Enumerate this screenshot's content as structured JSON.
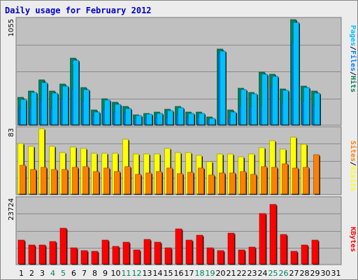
{
  "title": "Daily usage for February 2012",
  "colors": {
    "hits": "#00805c",
    "files": "#0080ff",
    "pages": "#00c0ff",
    "visits": "#ffff00",
    "sites": "#ff8000",
    "kbytes": "#ff0000",
    "weekday_label": "#000000",
    "weekend_label": "#00805c",
    "separator": "#000000"
  },
  "legend": {
    "top": [
      "Hits",
      "/",
      "Files",
      "/",
      "Pages"
    ],
    "middle": [
      "Visits",
      "/",
      "Sites"
    ],
    "bottom": [
      "KBytes"
    ]
  },
  "chart_data": [
    {
      "type": "bar",
      "name": "hits-files-pages",
      "ymax_label": "1055",
      "ylim": [
        0,
        1055
      ],
      "grid": true,
      "categories": [
        "1",
        "2",
        "3",
        "4",
        "5",
        "6",
        "7",
        "8",
        "9",
        "10",
        "11",
        "12",
        "13",
        "14",
        "15",
        "16",
        "17",
        "18",
        "19",
        "20",
        "21",
        "22",
        "23",
        "24",
        "25",
        "26",
        "27",
        "28",
        "29",
        "30",
        "31"
      ],
      "weekend_days": [
        "4",
        "5",
        "11",
        "12",
        "18",
        "19",
        "25",
        "26"
      ],
      "series": [
        {
          "name": "Hits",
          "values": [
            275,
            340,
            450,
            340,
            410,
            670,
            370,
            145,
            260,
            225,
            180,
            100,
            115,
            125,
            155,
            185,
            125,
            130,
            75,
            760,
            150,
            365,
            325,
            525,
            505,
            360,
            1055,
            385,
            340,
            0,
            0
          ]
        },
        {
          "name": "Files",
          "values": [
            170,
            170,
            240,
            170,
            260,
            350,
            240,
            90,
            160,
            130,
            110,
            60,
            70,
            70,
            70,
            100,
            80,
            80,
            50,
            715,
            70,
            190,
            180,
            190,
            380,
            220,
            820,
            230,
            200,
            0,
            0
          ]
        },
        {
          "name": "Pages",
          "values": [
            255,
            325,
            425,
            320,
            390,
            645,
            350,
            130,
            245,
            205,
            165,
            90,
            105,
            115,
            140,
            170,
            110,
            115,
            65,
            740,
            125,
            350,
            310,
            505,
            485,
            345,
            1030,
            370,
            320,
            0,
            0
          ]
        }
      ]
    },
    {
      "type": "bar",
      "name": "visits-sites",
      "ymax_label": "83",
      "ylim": [
        0,
        83
      ],
      "grid": true,
      "series": [
        {
          "name": "Visits",
          "values": [
            64,
            61,
            83,
            61,
            53,
            60,
            58,
            52,
            52,
            52,
            70,
            51,
            51,
            51,
            58,
            53,
            53,
            49,
            41,
            51,
            51,
            47,
            51,
            59,
            68,
            57,
            72,
            63,
            0,
            0,
            0
          ]
        },
        {
          "name": "Sites",
          "values": [
            37,
            31,
            34,
            31,
            31,
            34,
            35,
            29,
            33,
            29,
            35,
            25,
            27,
            29,
            33,
            26,
            28,
            33,
            24,
            27,
            27,
            29,
            25,
            35,
            34,
            38,
            33,
            34,
            50,
            0,
            0
          ]
        }
      ]
    },
    {
      "type": "bar",
      "name": "kbytes",
      "ymax_label": "23724",
      "ylim": [
        0,
        23724
      ],
      "grid": true,
      "series": [
        {
          "name": "KBytes",
          "values": [
            8800,
            6900,
            7000,
            8100,
            13000,
            5900,
            4800,
            4600,
            8600,
            6300,
            7900,
            5100,
            8900,
            7800,
            5800,
            12800,
            8600,
            10400,
            5800,
            4800,
            11200,
            5200,
            6200,
            18300,
            21800,
            10600,
            4600,
            6900,
            8800,
            0,
            0
          ]
        }
      ]
    }
  ]
}
